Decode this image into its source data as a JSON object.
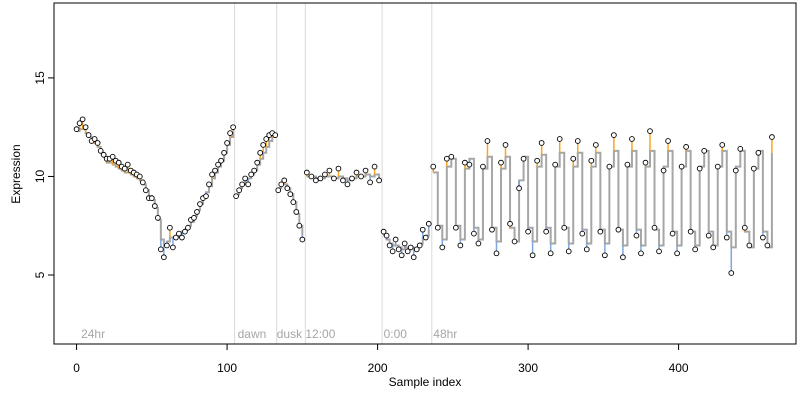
{
  "chart_data": {
    "type": "scatter",
    "title": "",
    "xlabel": "Sample index",
    "ylabel": "Expression",
    "xlim": [
      -15,
      478
    ],
    "ylim": [
      1.5,
      18.8
    ],
    "x_ticks": [
      0,
      100,
      200,
      300,
      400
    ],
    "y_ticks": [
      5,
      10,
      15
    ],
    "grid": false,
    "segment_boundaries": [
      105,
      133,
      152,
      203,
      236
    ],
    "segment_labels": [
      {
        "x": 3,
        "text": "24hr"
      },
      {
        "x": 107,
        "text": "dawn"
      },
      {
        "x": 133,
        "text": "dusk"
      },
      {
        "x": 152,
        "text": "12:00"
      },
      {
        "x": 204,
        "text": "0:00"
      },
      {
        "x": 237,
        "text": "48hr"
      }
    ],
    "colors": {
      "points_fill": "#ffffff",
      "points_stroke": "#000000",
      "fitted_line": "#a6a6a6",
      "residual_up": "#f5a623",
      "residual_down": "#7ea6e0",
      "boundary": "#d9d9d9",
      "segment_label": "#a6a6a6"
    },
    "series": [
      {
        "x": [
          0,
          2,
          4,
          6,
          8,
          10,
          12,
          14,
          16,
          18,
          20,
          22,
          24,
          26,
          28,
          30,
          32,
          34,
          36,
          38,
          40,
          42,
          44,
          46,
          48,
          50,
          52,
          54,
          56,
          58,
          60,
          62,
          64,
          66,
          68,
          70,
          72,
          74,
          76,
          78,
          80,
          82,
          84,
          86,
          88,
          90,
          92,
          94,
          96,
          98,
          100,
          102,
          104
        ],
        "observed": [
          12.4,
          12.7,
          12.9,
          12.5,
          12.1,
          11.8,
          11.9,
          11.7,
          11.3,
          11.1,
          10.9,
          10.9,
          11.0,
          10.8,
          10.7,
          10.5,
          10.4,
          10.6,
          10.3,
          10.2,
          10.1,
          10.0,
          9.7,
          9.3,
          8.9,
          8.9,
          8.5,
          7.9,
          6.3,
          5.9,
          6.5,
          7.4,
          6.4,
          6.9,
          7.1,
          6.9,
          7.2,
          7.4,
          7.8,
          7.9,
          8.2,
          8.6,
          8.9,
          9.0,
          9.6,
          10.1,
          10.3,
          10.6,
          10.8,
          11.2,
          11.7,
          12.2,
          12.5
        ],
        "fitted": [
          12.3,
          12.4,
          12.4,
          12.2,
          12.0,
          11.8,
          11.7,
          11.5,
          11.2,
          11.0,
          10.7,
          10.7,
          10.6,
          10.5,
          10.4,
          10.3,
          10.2,
          10.2,
          10.1,
          10.0,
          9.9,
          9.8,
          9.6,
          9.3,
          9.0,
          8.8,
          8.4,
          7.8,
          6.8,
          6.5,
          6.7,
          6.9,
          6.9,
          7.0,
          7.1,
          7.2,
          7.3,
          7.5,
          7.7,
          8.0,
          8.3,
          8.6,
          8.9,
          9.2,
          9.5,
          9.9,
          10.2,
          10.5,
          10.8,
          11.2,
          11.6,
          12.0,
          12.3
        ]
      },
      {
        "x": [
          106,
          108,
          110,
          112,
          114,
          116,
          118,
          120,
          122,
          124,
          126,
          128,
          130,
          132
        ],
        "observed": [
          9.0,
          9.3,
          9.6,
          9.9,
          9.6,
          10.1,
          10.3,
          10.7,
          11.2,
          11.6,
          11.9,
          12.1,
          12.2,
          12.1
        ],
        "fitted": [
          9.1,
          9.4,
          9.6,
          9.8,
          9.9,
          10.1,
          10.3,
          10.6,
          10.9,
          11.2,
          11.5,
          11.8,
          12.0,
          12.1
        ]
      },
      {
        "x": [
          134,
          136,
          138,
          140,
          142,
          144,
          146,
          148,
          150
        ],
        "observed": [
          9.3,
          9.6,
          9.8,
          9.4,
          9.1,
          8.7,
          8.2,
          7.5,
          6.8
        ],
        "fitted": [
          9.4,
          9.6,
          9.6,
          9.4,
          9.1,
          8.7,
          8.1,
          7.5,
          7.0
        ]
      },
      {
        "x": [
          153,
          156,
          159,
          162,
          165,
          168,
          171,
          174,
          177,
          180,
          183,
          186,
          189,
          192,
          195,
          198,
          201
        ],
        "observed": [
          10.2,
          10.0,
          9.8,
          9.9,
          10.1,
          10.3,
          9.9,
          10.4,
          9.8,
          9.6,
          9.9,
          10.2,
          10.0,
          10.3,
          9.7,
          10.5,
          9.8
        ],
        "fitted": [
          10.0,
          10.0,
          9.9,
          9.9,
          10.0,
          10.0,
          9.9,
          10.0,
          9.9,
          9.8,
          9.9,
          10.0,
          10.0,
          10.1,
          10.0,
          10.1,
          9.9
        ]
      },
      {
        "x": [
          204,
          206,
          208,
          210,
          212,
          214,
          216,
          218,
          220,
          222,
          224,
          226,
          228,
          230,
          232,
          234
        ],
        "observed": [
          7.2,
          7.0,
          6.5,
          6.2,
          6.8,
          6.3,
          6.0,
          6.6,
          6.2,
          6.4,
          5.9,
          6.3,
          6.5,
          7.3,
          6.9,
          7.6
        ],
        "fitted": [
          7.0,
          6.8,
          6.6,
          6.5,
          6.5,
          6.4,
          6.3,
          6.4,
          6.3,
          6.4,
          6.3,
          6.4,
          6.6,
          6.9,
          7.0,
          7.3
        ],
        "residual_color": "down"
      },
      {
        "x": [
          237,
          240,
          243,
          246,
          249,
          252,
          255,
          258,
          261,
          264,
          267,
          270,
          273,
          276,
          279,
          282,
          285,
          288,
          291,
          294,
          297,
          300,
          303,
          306,
          309,
          312,
          315,
          318,
          321,
          324,
          327,
          330,
          333,
          336,
          339,
          342,
          345,
          348,
          351,
          354,
          357,
          360,
          363,
          366,
          369,
          372,
          375,
          378,
          381,
          384,
          387,
          390,
          393,
          396,
          399,
          402,
          405,
          408,
          411,
          414,
          417,
          420,
          423,
          426,
          429,
          432,
          435,
          438,
          441,
          444,
          447,
          450,
          453,
          456,
          459,
          462
        ],
        "observed": [
          10.5,
          7.4,
          6.4,
          10.9,
          11.0,
          7.4,
          6.5,
          10.7,
          10.6,
          7.1,
          6.6,
          10.5,
          11.8,
          7.3,
          6.1,
          10.7,
          11.6,
          7.6,
          6.7,
          9.4,
          10.9,
          7.2,
          6.0,
          10.8,
          11.7,
          7.2,
          6.1,
          10.6,
          11.9,
          7.4,
          6.2,
          10.9,
          11.8,
          7.1,
          6.3,
          10.8,
          11.6,
          7.2,
          6.0,
          10.5,
          12.1,
          7.3,
          5.9,
          10.6,
          11.9,
          7.0,
          6.1,
          10.7,
          12.3,
          7.4,
          6.2,
          10.3,
          11.8,
          7.1,
          6.1,
          10.5,
          11.5,
          7.2,
          6.3,
          10.4,
          11.3,
          7.0,
          6.4,
          10.5,
          11.6,
          6.9,
          5.1,
          10.3,
          11.4,
          7.4,
          6.5,
          10.4,
          11.2,
          6.9,
          6.5,
          12.0
        ],
        "fitted": [
          10.2,
          7.5,
          6.8,
          10.5,
          10.9,
          7.5,
          6.8,
          10.4,
          10.9,
          7.4,
          6.8,
          10.4,
          11.0,
          7.4,
          6.7,
          10.4,
          11.0,
          7.4,
          6.7,
          9.8,
          11.0,
          7.4,
          6.7,
          10.5,
          11.1,
          7.4,
          6.6,
          10.5,
          11.2,
          7.4,
          6.6,
          10.5,
          11.2,
          7.3,
          6.6,
          10.5,
          11.2,
          7.3,
          6.6,
          10.5,
          11.3,
          7.3,
          6.5,
          10.5,
          11.3,
          7.3,
          6.5,
          10.5,
          11.3,
          7.3,
          6.5,
          10.5,
          11.3,
          7.2,
          6.5,
          10.5,
          11.3,
          7.2,
          6.5,
          10.5,
          11.3,
          7.2,
          6.5,
          10.5,
          11.3,
          7.2,
          6.4,
          10.5,
          11.3,
          7.2,
          6.4,
          10.4,
          11.3,
          7.2,
          6.4,
          11.2
        ]
      }
    ]
  }
}
